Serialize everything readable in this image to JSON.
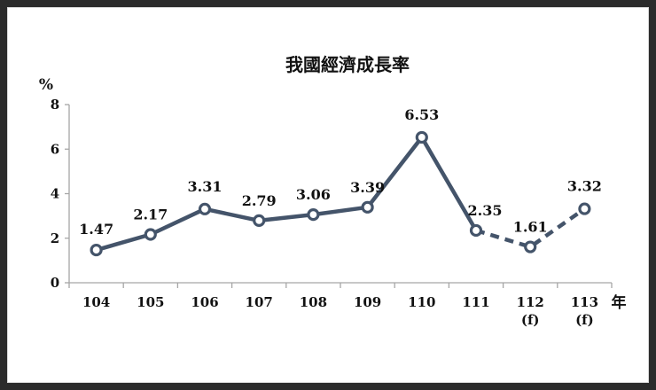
{
  "chart_data": {
    "type": "line",
    "title": "我國經濟成長率",
    "y_unit": "%",
    "x_unit": "年",
    "categories": [
      "104",
      "105",
      "106",
      "107",
      "108",
      "109",
      "110",
      "111",
      "112",
      "113"
    ],
    "category_notes": [
      "",
      "",
      "",
      "",
      "",
      "",
      "",
      "",
      "(f)",
      "(f)"
    ],
    "values": [
      1.47,
      2.17,
      3.31,
      2.79,
      3.06,
      3.39,
      6.53,
      2.35,
      1.61,
      3.32
    ],
    "value_labels": [
      "1.47",
      "2.17",
      "3.31",
      "2.79",
      "3.06",
      "3.39",
      "6.53",
      "2.35",
      "1.61",
      "3.32"
    ],
    "forecast_from_index": 7,
    "ylim": [
      0,
      8
    ],
    "yticks": [
      "0",
      "2",
      "4",
      "6",
      "8"
    ],
    "grid": false,
    "legend": "none",
    "line_color": "#44546a",
    "marker_fill": "#ffffff"
  }
}
